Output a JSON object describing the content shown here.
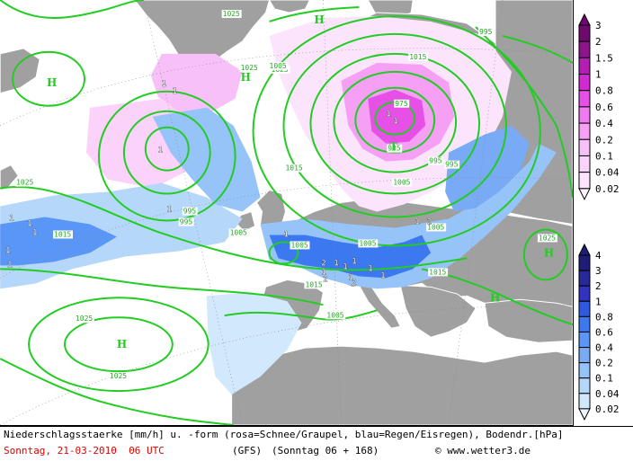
{
  "caption": "Niederschlagsstaerke [mm/h] u. -form (rosa=Schnee/Graupel, blau=Regen/Eisregen), Bodendr.[hPa]",
  "date": "Sonntag, 21-03-2010  06 UTC",
  "model": "(GFS)",
  "run": "(Sonntag 06 + 168)",
  "credit": "© www.wetter3.de",
  "snow_scale": {
    "labels": [
      "3",
      "2",
      "1.5",
      "1",
      "0.8",
      "0.6",
      "0.4",
      "0.2",
      "0.1",
      "0.04",
      "0.02"
    ],
    "colors": [
      "#6e0a6e",
      "#8c148c",
      "#b41eb4",
      "#d22ad2",
      "#e650e6",
      "#f07af0",
      "#f5a0f5",
      "#f8c0f8",
      "#fad2fa",
      "#fce4fc",
      "#fef2fe"
    ]
  },
  "rain_scale": {
    "labels": [
      "4",
      "3",
      "2",
      "1",
      "0.8",
      "0.6",
      "0.4",
      "0.2",
      "0.1",
      "0.04",
      "0.02"
    ],
    "colors": [
      "#1e1e78",
      "#28289a",
      "#3232c0",
      "#2d5ae0",
      "#3c78f0",
      "#5a96f5",
      "#78aaf5",
      "#96c3f8",
      "#b4d7fa",
      "#d2e8fc",
      "#ebf5fe"
    ]
  },
  "isobar_labels": [
    "1025",
    "1025",
    "1025",
    "1015",
    "1005",
    "995",
    "985",
    "975",
    "1015",
    "995",
    "995",
    "995",
    "995",
    "1005",
    "1005",
    "1015",
    "1005",
    "1005",
    "1015",
    "1025",
    "1025",
    "1025",
    "1005",
    "1015",
    "1005",
    "1025"
  ],
  "pressure_centers": [
    "H",
    "H",
    "H",
    "H",
    "H",
    "H",
    "T"
  ],
  "precip_value_labels": [
    "1",
    "1",
    "1",
    "1",
    "1",
    "1",
    "1",
    "1",
    "1",
    "1",
    "2",
    "1",
    "1",
    "2",
    "1",
    "1",
    "1",
    "2",
    "1",
    "1",
    "1",
    "2",
    "1",
    "1"
  ],
  "colors": {
    "ocean": "#ffffff",
    "land": "#a0a0a0",
    "isobar": "#22cc22",
    "coast": "#ffffff",
    "date_text": "#e00000"
  }
}
